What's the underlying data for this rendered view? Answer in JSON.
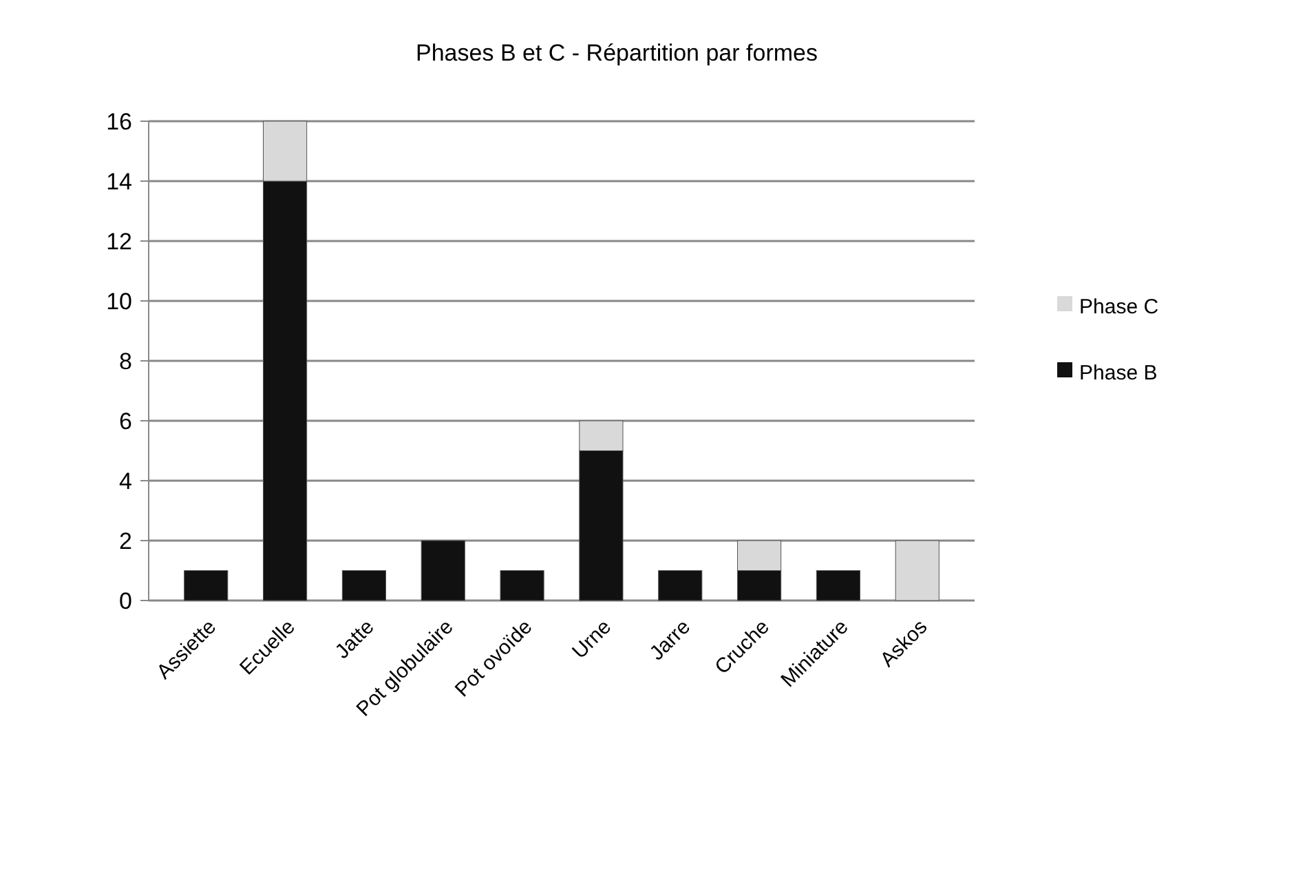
{
  "chart_data": {
    "type": "bar",
    "title": "Phases B et C - Répartition par formes",
    "categories": [
      "Assiette",
      "Ecuelle",
      "Jatte",
      "Pot globulaire",
      "Pot ovoïde",
      "Urne",
      "Jarre",
      "Cruche",
      "Miniature",
      "Askos"
    ],
    "series": [
      {
        "name": "Phase B",
        "color": "#111111",
        "values": [
          1,
          14,
          1,
          2,
          1,
          5,
          1,
          1,
          1,
          0
        ]
      },
      {
        "name": "Phase C",
        "color": "#d9d9d9",
        "values": [
          0,
          2,
          0,
          0,
          0,
          1,
          0,
          1,
          0,
          2
        ]
      }
    ],
    "stacked": true,
    "ylim": [
      0,
      16
    ],
    "yticks": [
      0,
      2,
      4,
      6,
      8,
      10,
      12,
      14,
      16
    ],
    "grid": "y",
    "legend": "right"
  }
}
